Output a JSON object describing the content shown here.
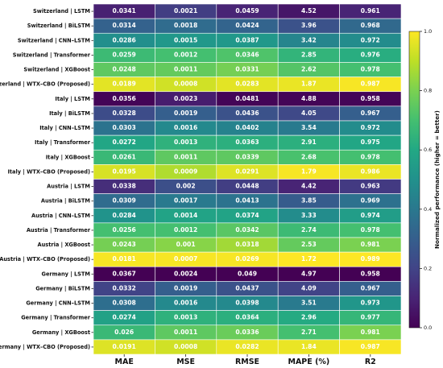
{
  "chart_data": {
    "type": "heatmap",
    "columns": [
      "MAE",
      "MSE",
      "RMSE",
      "MAPE (%)",
      "R2"
    ],
    "rows": [
      {
        "label": "Switzerland | LSTM",
        "values": [
          "0.0341",
          "0.0021",
          "0.0459",
          "4.52",
          "0.961"
        ],
        "norm": [
          0.09,
          0.18,
          0.1,
          0.06,
          0.1
        ]
      },
      {
        "label": "Switzerland | BiLSTM",
        "values": [
          "0.0314",
          "0.0018",
          "0.0424",
          "3.96",
          "0.968"
        ],
        "norm": [
          0.31,
          0.35,
          0.32,
          0.25,
          0.34
        ]
      },
      {
        "label": "Switzerland | CNN–LSTM",
        "values": [
          "0.0286",
          "0.0015",
          "0.0387",
          "3.42",
          "0.972"
        ],
        "norm": [
          0.49,
          0.53,
          0.53,
          0.45,
          0.48
        ]
      },
      {
        "label": "Switzerland | Transformer",
        "values": [
          "0.0259",
          "0.0012",
          "0.0346",
          "2.85",
          "0.976"
        ],
        "norm": [
          0.68,
          0.7,
          0.72,
          0.65,
          0.62
        ]
      },
      {
        "label": "Switzerland | XGBoost",
        "values": [
          "0.0248",
          "0.0011",
          "0.0331",
          "2.62",
          "0.978"
        ],
        "norm": [
          0.75,
          0.76,
          0.79,
          0.73,
          0.7
        ]
      },
      {
        "label": "Switzerland | WTX–CBO (Proposed)",
        "values": [
          "0.0189",
          "0.0008",
          "0.0283",
          "1.87",
          "0.987"
        ],
        "norm": [
          0.96,
          0.93,
          0.96,
          0.97,
          0.99
        ]
      },
      {
        "label": "Italy | LSTM",
        "values": [
          "0.0356",
          "0.0023",
          "0.0481",
          "4.88",
          "0.958"
        ],
        "norm": [
          0.01,
          0.08,
          0.01,
          0.01,
          0.01
        ]
      },
      {
        "label": "Italy | BiLSTM",
        "values": [
          "0.0328",
          "0.0019",
          "0.0436",
          "4.05",
          "0.967"
        ],
        "norm": [
          0.23,
          0.3,
          0.25,
          0.22,
          0.3
        ]
      },
      {
        "label": "Italy | CNN–LSTM",
        "values": [
          "0.0303",
          "0.0016",
          "0.0402",
          "3.54",
          "0.972"
        ],
        "norm": [
          0.38,
          0.47,
          0.44,
          0.41,
          0.48
        ]
      },
      {
        "label": "Italy | Transformer",
        "values": [
          "0.0272",
          "0.0013",
          "0.0363",
          "2.91",
          "0.975"
        ],
        "norm": [
          0.59,
          0.64,
          0.63,
          0.63,
          0.59
        ]
      },
      {
        "label": "Italy | XGBoost",
        "values": [
          "0.0261",
          "0.0011",
          "0.0339",
          "2.68",
          "0.978"
        ],
        "norm": [
          0.67,
          0.75,
          0.75,
          0.71,
          0.7
        ]
      },
      {
        "label": "Italy | WTX–CBO (Proposed)",
        "values": [
          "0.0195",
          "0.0009",
          "0.0291",
          "1.79",
          "0.986"
        ],
        "norm": [
          0.94,
          0.88,
          0.95,
          0.99,
          0.97
        ]
      },
      {
        "label": "Austria | LSTM",
        "values": [
          "0.0338",
          "0.002",
          "0.0448",
          "4.42",
          "0.963"
        ],
        "norm": [
          0.13,
          0.24,
          0.18,
          0.1,
          0.17
        ]
      },
      {
        "label": "Austria | BiLSTM",
        "values": [
          "0.0309",
          "0.0017",
          "0.0413",
          "3.85",
          "0.969"
        ],
        "norm": [
          0.35,
          0.41,
          0.38,
          0.29,
          0.37
        ]
      },
      {
        "label": "Austria | CNN–LSTM",
        "values": [
          "0.0284",
          "0.0014",
          "0.0374",
          "3.33",
          "0.974"
        ],
        "norm": [
          0.51,
          0.58,
          0.58,
          0.48,
          0.55
        ]
      },
      {
        "label": "Austria | Transformer",
        "values": [
          "0.0256",
          "0.0012",
          "0.0342",
          "2.74",
          "0.978"
        ],
        "norm": [
          0.7,
          0.7,
          0.74,
          0.68,
          0.7
        ]
      },
      {
        "label": "Austria | XGBoost",
        "values": [
          "0.0243",
          "0.001",
          "0.0318",
          "2.53",
          "0.981"
        ],
        "norm": [
          0.79,
          0.82,
          0.86,
          0.76,
          0.8
        ]
      },
      {
        "label": "Austria | WTX–CBO (Proposed)",
        "values": [
          "0.0181",
          "0.0007",
          "0.0269",
          "1.72",
          "0.989"
        ],
        "norm": [
          0.99,
          0.99,
          0.99,
          1.0,
          1.0
        ]
      },
      {
        "label": "Germany | LSTM",
        "values": [
          "0.0367",
          "0.0024",
          "0.049",
          "4.97",
          "0.958"
        ],
        "norm": [
          0.0,
          0.0,
          0.0,
          0.0,
          0.0
        ]
      },
      {
        "label": "Germany | BiLSTM",
        "values": [
          "0.0332",
          "0.0019",
          "0.0437",
          "4.09",
          "0.967"
        ],
        "norm": [
          0.2,
          0.3,
          0.25,
          0.2,
          0.3
        ]
      },
      {
        "label": "Germany | CNN–LSTM",
        "values": [
          "0.0308",
          "0.0016",
          "0.0398",
          "3.51",
          "0.973"
        ],
        "norm": [
          0.36,
          0.47,
          0.47,
          0.41,
          0.52
        ]
      },
      {
        "label": "Germany | Transformer",
        "values": [
          "0.0274",
          "0.0013",
          "0.0364",
          "2.96",
          "0.977"
        ],
        "norm": [
          0.57,
          0.64,
          0.63,
          0.61,
          0.66
        ]
      },
      {
        "label": "Germany | XGBoost",
        "values": [
          "0.026",
          "0.0011",
          "0.0336",
          "2.71",
          "0.981"
        ],
        "norm": [
          0.67,
          0.75,
          0.77,
          0.7,
          0.8
        ]
      },
      {
        "label": "Germany | WTX–CBO (Proposed)",
        "values": [
          "0.0191",
          "0.0008",
          "0.0282",
          "1.84",
          "0.987"
        ],
        "norm": [
          0.95,
          0.93,
          0.97,
          0.97,
          0.99
        ]
      }
    ],
    "colorbar": {
      "label": "Normalized performance (higher = better)",
      "range": [
        0.0,
        1.0
      ],
      "ticks": [
        "0.0",
        "0.2",
        "0.4",
        "0.6",
        "0.8",
        "1.0"
      ],
      "colormap": "viridis"
    },
    "grid": true
  }
}
